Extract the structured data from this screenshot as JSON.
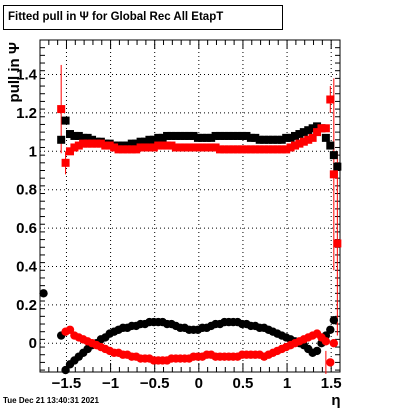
{
  "title": "Fitted pull in  Ψ  for Global Rec All EtapT",
  "footer": {
    "date": "Tue Dec 21 13:40:31 2021"
  },
  "colors": {
    "series_black": "#000000",
    "series_red": "#ff0000",
    "grid": "#000000"
  },
  "chart_data": {
    "type": "scatter",
    "title": "Fitted pull in  Ψ  for Global Rec All EtapT",
    "xlabel": "η",
    "ylabel": "pull in  Ψ",
    "xlim": [
      -1.8,
      1.6
    ],
    "ylim": [
      -0.15,
      1.58
    ],
    "grid": true,
    "x_ticks": [
      -1.5,
      -1,
      -0.5,
      0,
      0.5,
      1,
      1.5
    ],
    "x_tick_labels": [
      "−1.5",
      "−1",
      "−0.5",
      "0",
      "0.5",
      "1",
      "1.5"
    ],
    "y_ticks": [
      0,
      0.2,
      0.4,
      0.6,
      0.8,
      1,
      1.2,
      1.4
    ],
    "y_tick_labels": [
      "0",
      "0.2",
      "0.4",
      "0.6",
      "0.8",
      "1",
      "1.2",
      "1.4"
    ],
    "series": [
      {
        "color": "#000000",
        "marker": "square",
        "x": [
          -1.56,
          -1.51,
          -1.46,
          -1.41,
          -1.36,
          -1.31,
          -1.26,
          -1.21,
          -1.16,
          -1.11,
          -1.06,
          -1.01,
          -0.96,
          -0.91,
          -0.86,
          -0.81,
          -0.76,
          -0.71,
          -0.66,
          -0.61,
          -0.56,
          -0.51,
          -0.46,
          -0.41,
          -0.36,
          -0.31,
          -0.26,
          -0.21,
          -0.16,
          -0.11,
          -0.06,
          -0.01,
          0.04,
          0.09,
          0.14,
          0.19,
          0.24,
          0.29,
          0.34,
          0.39,
          0.44,
          0.49,
          0.54,
          0.59,
          0.64,
          0.69,
          0.74,
          0.79,
          0.84,
          0.89,
          0.94,
          0.99,
          1.04,
          1.09,
          1.14,
          1.19,
          1.24,
          1.29,
          1.34,
          1.39,
          1.44,
          1.49,
          1.53,
          1.57
        ],
        "y": [
          1.06,
          1.16,
          1.09,
          1.08,
          1.08,
          1.07,
          1.07,
          1.06,
          1.05,
          1.05,
          1.04,
          1.04,
          1.03,
          1.03,
          1.03,
          1.03,
          1.04,
          1.04,
          1.05,
          1.05,
          1.06,
          1.06,
          1.07,
          1.07,
          1.08,
          1.08,
          1.08,
          1.08,
          1.08,
          1.08,
          1.08,
          1.07,
          1.07,
          1.07,
          1.07,
          1.08,
          1.08,
          1.08,
          1.08,
          1.08,
          1.08,
          1.08,
          1.08,
          1.07,
          1.07,
          1.06,
          1.06,
          1.06,
          1.06,
          1.06,
          1.06,
          1.07,
          1.07,
          1.08,
          1.09,
          1.1,
          1.11,
          1.12,
          1.13,
          1.12,
          1.07,
          1.03,
          0.98,
          0.92
        ]
      },
      {
        "color": "#000000",
        "marker": "circle",
        "x": [
          -1.76,
          -1.56,
          -1.51,
          -1.46,
          -1.41,
          -1.36,
          -1.31,
          -1.26,
          -1.21,
          -1.16,
          -1.11,
          -1.06,
          -1.01,
          -0.96,
          -0.91,
          -0.86,
          -0.81,
          -0.76,
          -0.71,
          -0.66,
          -0.61,
          -0.56,
          -0.51,
          -0.46,
          -0.41,
          -0.36,
          -0.31,
          -0.26,
          -0.21,
          -0.16,
          -0.11,
          -0.06,
          -0.01,
          0.04,
          0.09,
          0.14,
          0.19,
          0.24,
          0.29,
          0.34,
          0.39,
          0.44,
          0.49,
          0.54,
          0.59,
          0.64,
          0.69,
          0.74,
          0.79,
          0.84,
          0.89,
          0.94,
          0.99,
          1.04,
          1.09,
          1.14,
          1.19,
          1.24,
          1.29,
          1.34,
          1.39,
          1.44,
          1.49,
          1.53
        ],
        "y": [
          0.26,
          0.04,
          -0.14,
          -0.11,
          -0.09,
          -0.07,
          -0.05,
          -0.03,
          -0.01,
          0.0,
          0.02,
          0.03,
          0.05,
          0.06,
          0.07,
          0.08,
          0.08,
          0.09,
          0.09,
          0.1,
          0.1,
          0.11,
          0.11,
          0.11,
          0.11,
          0.1,
          0.1,
          0.09,
          0.08,
          0.08,
          0.07,
          0.07,
          0.07,
          0.08,
          0.08,
          0.09,
          0.1,
          0.1,
          0.11,
          0.11,
          0.11,
          0.11,
          0.1,
          0.1,
          0.09,
          0.09,
          0.08,
          0.08,
          0.07,
          0.06,
          0.05,
          0.04,
          0.03,
          0.02,
          0.01,
          0.0,
          -0.01,
          -0.03,
          -0.05,
          -0.04,
          0.0,
          0.04,
          0.07,
          0.12
        ]
      },
      {
        "color": "#ff0000",
        "marker": "square",
        "x": [
          -1.56,
          -1.51,
          -1.46,
          -1.41,
          -1.36,
          -1.31,
          -1.26,
          -1.21,
          -1.16,
          -1.11,
          -1.06,
          -1.01,
          -0.96,
          -0.91,
          -0.86,
          -0.81,
          -0.76,
          -0.71,
          -0.66,
          -0.61,
          -0.56,
          -0.51,
          -0.46,
          -0.41,
          -0.36,
          -0.31,
          -0.26,
          -0.21,
          -0.16,
          -0.11,
          -0.06,
          -0.01,
          0.04,
          0.09,
          0.14,
          0.19,
          0.24,
          0.29,
          0.34,
          0.39,
          0.44,
          0.49,
          0.54,
          0.59,
          0.64,
          0.69,
          0.74,
          0.79,
          0.84,
          0.89,
          0.94,
          0.99,
          1.04,
          1.09,
          1.14,
          1.19,
          1.24,
          1.29,
          1.34,
          1.39,
          1.44,
          1.49,
          1.53,
          1.57
        ],
        "y": [
          1.22,
          0.94,
          1.0,
          1.02,
          1.03,
          1.04,
          1.04,
          1.04,
          1.04,
          1.04,
          1.03,
          1.03,
          1.02,
          1.01,
          1.01,
          1.01,
          1.01,
          1.01,
          1.02,
          1.02,
          1.02,
          1.02,
          1.03,
          1.03,
          1.03,
          1.03,
          1.02,
          1.02,
          1.02,
          1.02,
          1.02,
          1.02,
          1.02,
          1.02,
          1.02,
          1.02,
          1.01,
          1.01,
          1.01,
          1.01,
          1.01,
          1.01,
          1.01,
          1.01,
          1.01,
          1.01,
          1.01,
          1.01,
          1.01,
          1.01,
          1.01,
          1.01,
          1.02,
          1.03,
          1.04,
          1.05,
          1.06,
          1.07,
          1.1,
          1.12,
          1.12,
          1.27,
          0.88,
          0.52
        ]
      },
      {
        "color": "#ff0000",
        "marker": "circle",
        "x": [
          -1.51,
          -1.46,
          -1.41,
          -1.36,
          -1.31,
          -1.26,
          -1.21,
          -1.16,
          -1.11,
          -1.06,
          -1.01,
          -0.96,
          -0.91,
          -0.86,
          -0.81,
          -0.76,
          -0.71,
          -0.66,
          -0.61,
          -0.56,
          -0.51,
          -0.46,
          -0.41,
          -0.36,
          -0.31,
          -0.26,
          -0.21,
          -0.16,
          -0.11,
          -0.06,
          -0.01,
          0.04,
          0.09,
          0.14,
          0.19,
          0.24,
          0.29,
          0.34,
          0.39,
          0.44,
          0.49,
          0.54,
          0.59,
          0.64,
          0.69,
          0.74,
          0.79,
          0.84,
          0.89,
          0.94,
          0.99,
          1.04,
          1.09,
          1.14,
          1.19,
          1.24,
          1.29,
          1.34,
          1.39,
          1.44,
          1.49,
          1.53
        ],
        "y": [
          0.06,
          0.07,
          0.04,
          0.03,
          0.02,
          0.01,
          0.0,
          -0.01,
          -0.02,
          -0.03,
          -0.04,
          -0.05,
          -0.05,
          -0.06,
          -0.06,
          -0.07,
          -0.07,
          -0.08,
          -0.08,
          -0.08,
          -0.09,
          -0.09,
          -0.09,
          -0.09,
          -0.08,
          -0.08,
          -0.08,
          -0.08,
          -0.08,
          -0.07,
          -0.07,
          -0.07,
          -0.06,
          -0.06,
          -0.07,
          -0.07,
          -0.07,
          -0.07,
          -0.07,
          -0.07,
          -0.06,
          -0.06,
          -0.06,
          -0.06,
          -0.06,
          -0.07,
          -0.06,
          -0.05,
          -0.04,
          -0.03,
          -0.02,
          -0.01,
          0.0,
          0.01,
          0.02,
          0.03,
          0.04,
          0.05,
          0.03,
          0.01,
          -0.1,
          0.0
        ]
      }
    ],
    "error_bars": [
      {
        "x": -1.56,
        "y": 1.22,
        "err": 0.23,
        "color": "#ff0000"
      },
      {
        "x": -1.51,
        "y": 0.94,
        "err": 0.06,
        "color": "#ff0000"
      },
      {
        "x": 1.49,
        "y": 1.27,
        "err": 0.07,
        "color": "#ff0000"
      },
      {
        "x": 1.53,
        "y": 0.88,
        "err": 0.5,
        "color": "#ff0000"
      },
      {
        "x": 1.57,
        "y": 0.52,
        "err": 0.48,
        "color": "#ff0000"
      },
      {
        "x": 1.44,
        "y": -0.1,
        "err": 0.06,
        "color": "#ff0000"
      }
    ]
  }
}
